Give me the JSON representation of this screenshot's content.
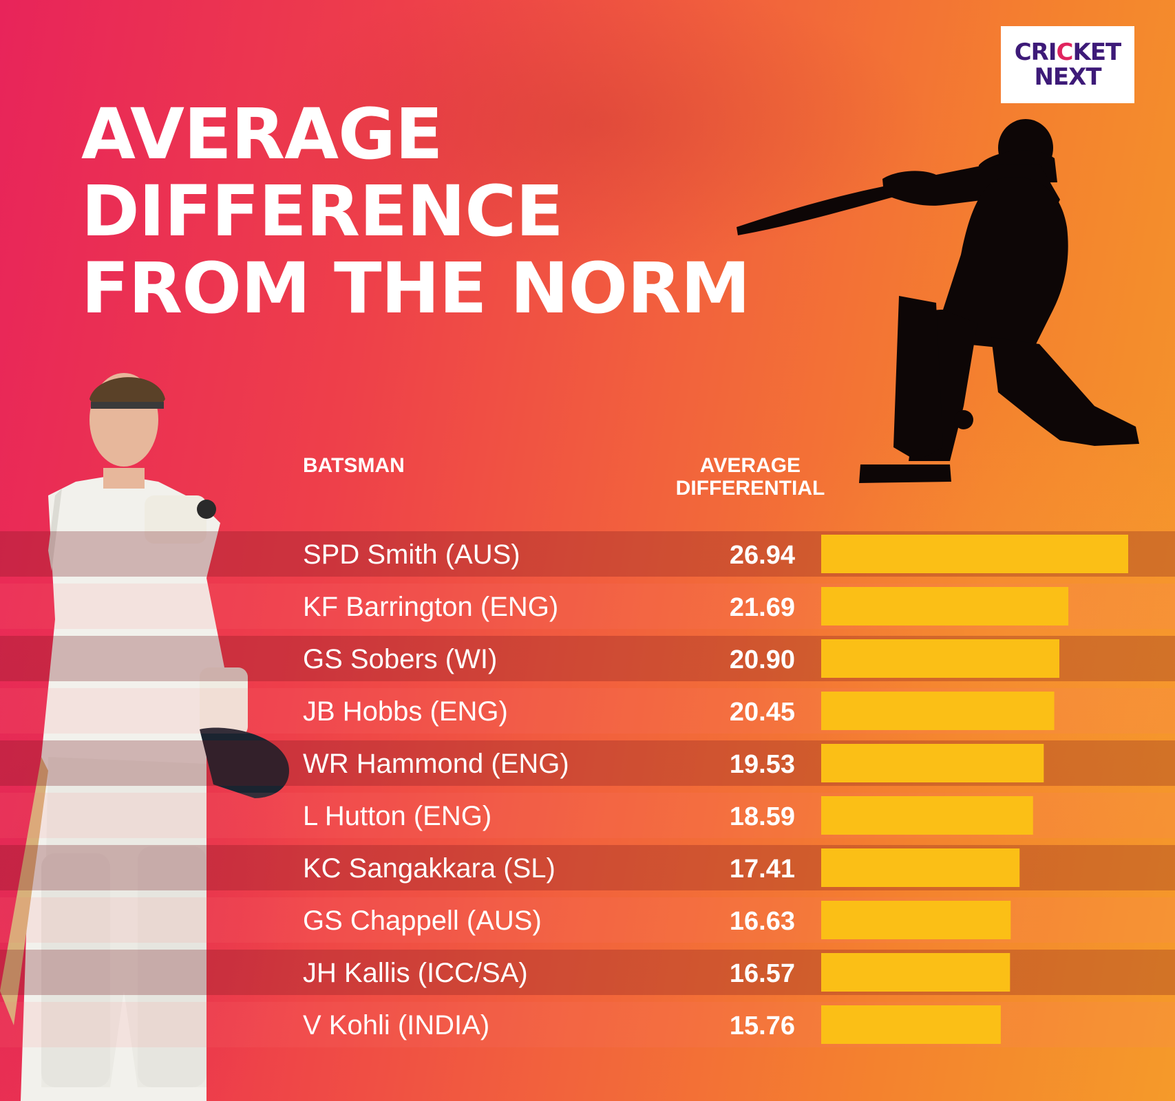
{
  "logo": {
    "line1_a": "CRI",
    "line1_ball": "C",
    "line1_b": "KET",
    "line2": "NEXT"
  },
  "title": {
    "line1": "AVERAGE",
    "line2": "DIFFERENCE",
    "line3": "FROM THE NORM"
  },
  "headers": {
    "batsman": "BATSMAN",
    "avg_line1": "AVERAGE",
    "avg_line2": "DIFFERENTIAL"
  },
  "colors": {
    "bar": "#fbbf16",
    "stripe_dark": "rgba(120,20,30,0.28)",
    "stripe_light": "rgba(255,120,120,0.12)",
    "text": "#ffffff"
  },
  "chart_data": {
    "type": "bar",
    "orientation": "horizontal",
    "categories": [
      "SPD Smith (AUS)",
      "KF Barrington (ENG)",
      "GS Sobers (WI)",
      "JB Hobbs (ENG)",
      "WR Hammond (ENG)",
      "L Hutton (ENG)",
      "KC Sangakkara (SL)",
      "GS Chappell (AUS)",
      "JH Kallis (ICC/SA)",
      "V Kohli (INDIA)"
    ],
    "values": [
      26.94,
      21.69,
      20.9,
      20.45,
      19.53,
      18.59,
      17.41,
      16.63,
      16.57,
      15.76
    ],
    "value_labels": [
      "26.94",
      "21.69",
      "20.90",
      "20.45",
      "19.53",
      "18.59",
      "17.41",
      "16.63",
      "16.57",
      "15.76"
    ],
    "xlim": [
      0,
      26.94
    ],
    "grid": false
  }
}
